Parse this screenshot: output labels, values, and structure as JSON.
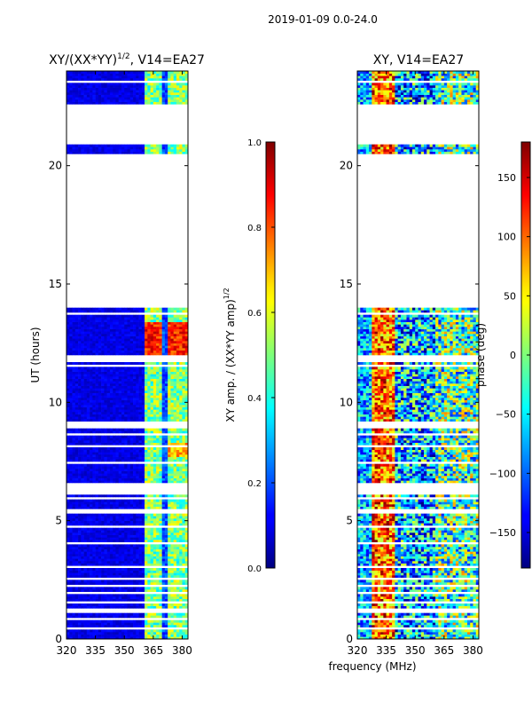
{
  "figure": {
    "suptitle": "2019-01-09 0.0-24.0",
    "xlabel": "frequency (MHz)"
  },
  "chart_data": [
    {
      "type": "heatmap",
      "title_prefix": "XY/(XX*YY)",
      "title_exp": "1/2",
      "title_suffix": ", V14=EA27",
      "xlabel": "",
      "ylabel": "UT (hours)",
      "xlim": [
        320,
        383
      ],
      "ylim": [
        0,
        24
      ],
      "xticks": [
        320,
        335,
        350,
        365,
        380
      ],
      "yticks": [
        0,
        5,
        10,
        15,
        20
      ],
      "colorbar": {
        "label_prefix": "XY amp. / (XX*YY amp)",
        "label_exp": "1/2",
        "range": [
          0.0,
          1.0
        ],
        "ticks": [
          "0.0",
          "0.2",
          "0.4",
          "0.6",
          "0.8",
          "1.0"
        ],
        "tick_values": [
          0.0,
          0.2,
          0.4,
          0.6,
          0.8,
          1.0
        ],
        "colormap": "jet"
      },
      "gaps_hours": [
        [
          0.2,
          0.25
        ],
        [
          0.45,
          0.55
        ],
        [
          0.8,
          0.9
        ],
        [
          1.15,
          1.3
        ],
        [
          1.55,
          1.65
        ],
        [
          1.9,
          2.0
        ],
        [
          2.2,
          2.3
        ],
        [
          2.55,
          2.65
        ],
        [
          3.05,
          3.15
        ],
        [
          3.6,
          3.65
        ],
        [
          4.0,
          4.1
        ],
        [
          4.7,
          4.8
        ],
        [
          5.3,
          5.5
        ],
        [
          5.9,
          6.0
        ],
        [
          6.1,
          6.6
        ],
        [
          7.4,
          7.45
        ],
        [
          8.1,
          8.15
        ],
        [
          8.55,
          8.65
        ],
        [
          8.9,
          9.2
        ],
        [
          11.45,
          11.55
        ],
        [
          11.7,
          11.95
        ],
        [
          13.7,
          13.75
        ],
        [
          13.95,
          14.05
        ],
        [
          14.1,
          20.5
        ],
        [
          20.9,
          22.6
        ],
        [
          23.3,
          23.35
        ],
        [
          23.55,
          23.65
        ]
      ]
    },
    {
      "type": "heatmap",
      "title": "XY, V14=EA27",
      "xlabel": "",
      "ylabel": "",
      "xlim": [
        320,
        383
      ],
      "ylim": [
        0,
        24
      ],
      "xticks": [
        320,
        335,
        350,
        365,
        380
      ],
      "yticks": [
        0,
        5,
        10,
        15,
        20
      ],
      "colorbar": {
        "label": "phase (deg)",
        "range": [
          -180,
          180
        ],
        "ticks": [
          "150",
          "100",
          "50",
          "0",
          "−50",
          "−100",
          "−150"
        ],
        "tick_values": [
          150,
          100,
          50,
          0,
          -50,
          -100,
          -150
        ],
        "colormap": "jet"
      },
      "gaps_hours": [
        [
          0.2,
          0.25
        ],
        [
          0.45,
          0.55
        ],
        [
          0.8,
          0.9
        ],
        [
          1.15,
          1.3
        ],
        [
          1.55,
          1.65
        ],
        [
          1.9,
          2.0
        ],
        [
          2.2,
          2.3
        ],
        [
          2.55,
          2.65
        ],
        [
          3.05,
          3.15
        ],
        [
          3.6,
          3.65
        ],
        [
          4.0,
          4.1
        ],
        [
          4.7,
          4.8
        ],
        [
          5.3,
          5.5
        ],
        [
          5.9,
          6.0
        ],
        [
          6.1,
          6.6
        ],
        [
          7.4,
          7.45
        ],
        [
          8.1,
          8.15
        ],
        [
          8.55,
          8.65
        ],
        [
          8.9,
          9.2
        ],
        [
          11.45,
          11.55
        ],
        [
          11.7,
          11.95
        ],
        [
          13.7,
          13.75
        ],
        [
          13.95,
          14.05
        ],
        [
          14.1,
          20.5
        ],
        [
          20.9,
          22.6
        ],
        [
          23.3,
          23.35
        ],
        [
          23.55,
          23.65
        ]
      ]
    }
  ]
}
